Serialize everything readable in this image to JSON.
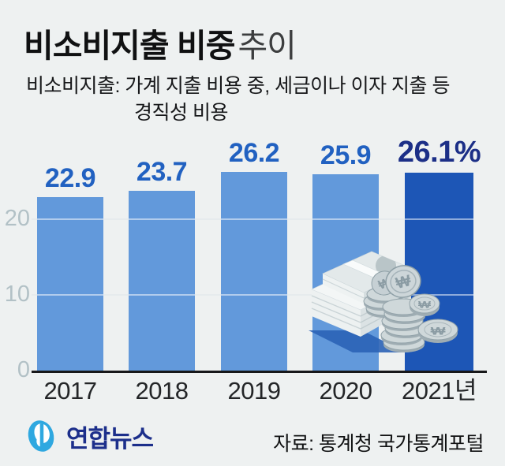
{
  "header": {
    "title_strong": "비소비지출 비중",
    "title_light": "추이",
    "subtitle_line1": "비소비지출: 가계 지출 비용 중, 세금이나 이자 지출 등",
    "subtitle_line2": "경직성 비용"
  },
  "chart_data": {
    "type": "bar",
    "title": "비소비지출 비중 추이",
    "categories": [
      "2017",
      "2018",
      "2019",
      "2020",
      "2021년"
    ],
    "values": [
      22.9,
      23.7,
      26.2,
      25.9,
      26.1
    ],
    "value_labels": [
      "22.9",
      "23.7",
      "26.2",
      "25.9",
      "26.1%"
    ],
    "unit": "%",
    "xlabel": "",
    "ylabel": "",
    "ylim": [
      0,
      28
    ],
    "yticks": [
      0,
      10,
      20
    ],
    "ytick_labels": [
      "0",
      "10",
      "20"
    ],
    "grid_values": [
      10,
      20
    ],
    "grid": "horizontal",
    "legend": "none",
    "highlight_index": 4,
    "highlight_note": "2021 bar emphasized in dark blue"
  },
  "colors": {
    "background": "#eef1f1",
    "bar": "#6299db",
    "bar_final": "#1d56b6",
    "value_label": "#2161c1",
    "value_label_final": "#1c2f87",
    "axis_tick": "#b2c1c6",
    "x_label": "#232527",
    "grid": "#ccd6da",
    "baseline": "#17181a",
    "logo_blue": "#2fa8e0",
    "logo_text": "#1c2f8b"
  },
  "illustration": {
    "name": "money-bills-and-coins",
    "coin_symbol": "₩"
  },
  "footer": {
    "logo_text": "연합뉴스",
    "source": "자료: 통계청 국가통계포털"
  }
}
